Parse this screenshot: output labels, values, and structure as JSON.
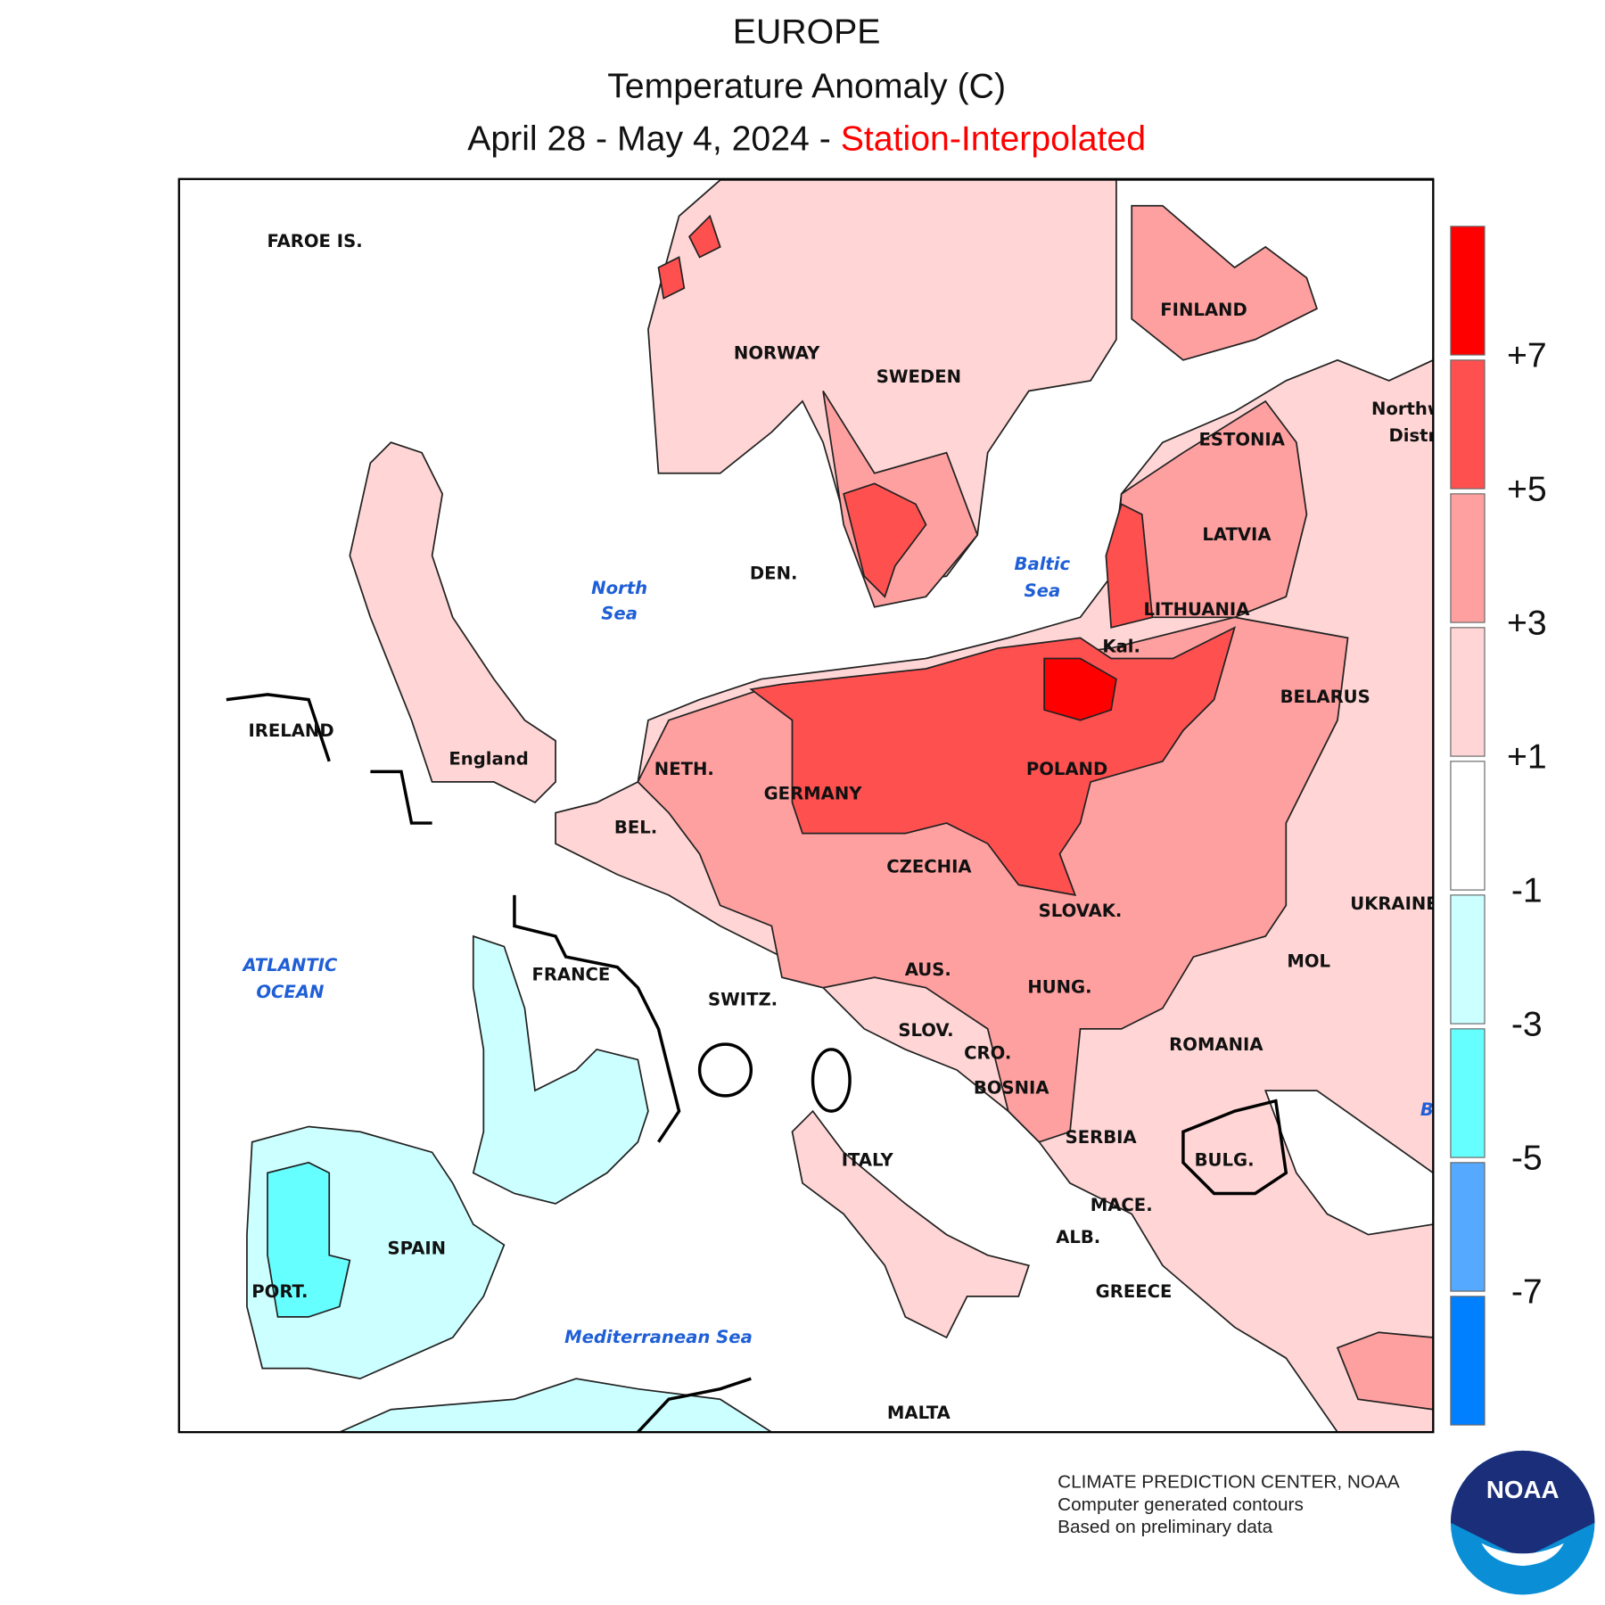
{
  "header": {
    "title": "EUROPE",
    "subtitle": "Temperature Anomaly (C)",
    "period": "April 28 - May 4, 2024 - ",
    "method": "Station-Interpolated"
  },
  "map": {
    "place_labels": [
      "FAROE IS.",
      "NORWAY",
      "SWEDEN",
      "FINLAND",
      "ESTONIA",
      "LATVIA",
      "LITHUANIA",
      "Kal.",
      "DEN.",
      "BELARUS",
      "IRELAND",
      "England",
      "NETH.",
      "GERMANY",
      "POLAND",
      "BEL.",
      "CZECHIA",
      "SLOVAK.",
      "UKRAINE",
      "FRANCE",
      "AUS.",
      "SWITZ.",
      "HUNG.",
      "MOL",
      "SLOV.",
      "CRO.",
      "ROMANIA",
      "BOSNIA",
      "SERBIA",
      "ITALY",
      "BULG.",
      "MACE.",
      "ALB.",
      "SPAIN",
      "PORT.",
      "GREECE",
      "MALTA",
      "Northw",
      "Distri"
    ],
    "sea_labels": [
      "North",
      "Sea",
      "Baltic",
      "Sea",
      "ATLANTIC",
      "OCEAN",
      "Mediterranean Sea",
      "B"
    ]
  },
  "legend": {
    "colors": [
      "#ff0000",
      "#ff5050",
      "#ffa0a0",
      "#ffd5d5",
      "#ffffff",
      "#ccffff",
      "#66ffff",
      "#55aaff",
      "#0080ff"
    ],
    "ticks": [
      {
        "value": 7,
        "label": "+7"
      },
      {
        "value": 5,
        "label": "+5"
      },
      {
        "value": 3,
        "label": "+3"
      },
      {
        "value": 1,
        "label": "+1"
      },
      -1,
      -3,
      -5,
      -7
    ]
  },
  "footer": {
    "lines": [
      "CLIMATE PREDICTION CENTER, NOAA",
      "Computer generated contours",
      "Based on preliminary data"
    ],
    "logo": "NOAA"
  }
}
